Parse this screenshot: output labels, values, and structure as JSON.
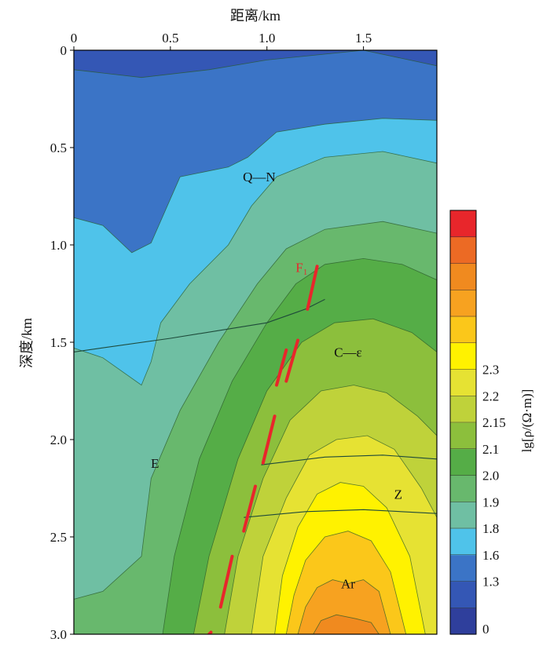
{
  "chart_data": {
    "type": "heatmap",
    "title": "",
    "xlabel": "距离/km",
    "ylabel": "深度/km",
    "xlim": [
      0,
      1.88
    ],
    "ylim": [
      0,
      3.0
    ],
    "x_ticks": [
      "0",
      "0.5",
      "1.0",
      "1.5"
    ],
    "x_tick_values": [
      0,
      0.5,
      1.0,
      1.5
    ],
    "y_ticks": [
      "0",
      "0.5",
      "1.0",
      "1.5",
      "2.0",
      "2.5",
      "3.0"
    ],
    "y_tick_values": [
      0,
      0.5,
      1.0,
      1.5,
      2.0,
      2.5,
      3.0
    ],
    "colorbar": {
      "label": "lg[ρ/(Ω·m)]",
      "labels": [
        "0",
        "1.3",
        "1.6",
        "1.8",
        "1.9",
        "2.0",
        "2.1",
        "2.15",
        "2.2",
        "2.3"
      ],
      "colors": [
        "#2f3f9c",
        "#3457b5",
        "#3b74c6",
        "#4fc3ea",
        "#6fbfa3",
        "#68b86d",
        "#55ad47",
        "#8cbf3c",
        "#bfd23a",
        "#e6e233",
        "#fff200",
        "#fbc71a",
        "#f7a220",
        "#f08a1f",
        "#ec6a24",
        "#e8262b"
      ]
    },
    "layers": [
      {
        "label": "Q—N",
        "x": 0.96,
        "depth": 0.65
      },
      {
        "label": "C—ε",
        "x": 1.42,
        "depth": 1.55
      },
      {
        "label": "E",
        "x": 0.42,
        "depth": 2.12
      },
      {
        "label": "Z",
        "x": 1.68,
        "depth": 2.28
      },
      {
        "label": "Ar",
        "x": 1.42,
        "depth": 2.74
      }
    ],
    "fault": {
      "label": "F₁",
      "label_x": 1.18,
      "label_depth": 1.14,
      "segments": [
        [
          [
            1.26,
            1.11
          ],
          [
            1.21,
            1.33
          ]
        ],
        [
          [
            1.1,
            1.54
          ],
          [
            1.05,
            1.72
          ]
        ],
        [
          [
            1.16,
            1.49
          ],
          [
            1.1,
            1.7
          ]
        ],
        [
          [
            1.04,
            1.88
          ],
          [
            0.98,
            2.12
          ]
        ],
        [
          [
            0.94,
            2.24
          ],
          [
            0.88,
            2.47
          ]
        ],
        [
          [
            0.82,
            2.6
          ],
          [
            0.76,
            2.86
          ]
        ],
        [
          [
            0.71,
            2.99
          ],
          [
            0.7,
            3.0
          ]
        ]
      ]
    },
    "boundaries": [
      [
        [
          0,
          1.55
        ],
        [
          0.5,
          1.48
        ],
        [
          1.0,
          1.4
        ],
        [
          1.2,
          1.33
        ],
        [
          1.3,
          1.28
        ]
      ],
      [
        [
          0.97,
          2.13
        ],
        [
          1.3,
          2.09
        ],
        [
          1.6,
          2.08
        ],
        [
          1.88,
          2.1
        ]
      ],
      [
        [
          0.88,
          2.4
        ],
        [
          1.2,
          2.37
        ],
        [
          1.5,
          2.36
        ],
        [
          1.88,
          2.38
        ]
      ]
    ],
    "regions": [
      {
        "color": "#3457b5",
        "pts": [
          [
            0,
            0
          ],
          [
            1.88,
            0
          ],
          [
            1.88,
            3.0
          ],
          [
            0,
            3.0
          ]
        ]
      },
      {
        "color": "#3b74c6",
        "pts": [
          [
            0,
            0.1
          ],
          [
            0.35,
            0.14
          ],
          [
            0.7,
            0.1
          ],
          [
            1.0,
            0.05
          ],
          [
            1.5,
            0.0
          ],
          [
            1.88,
            0.08
          ],
          [
            1.88,
            3.0
          ],
          [
            0,
            3.0
          ]
        ]
      },
      {
        "color": "#4fc3ea",
        "pts": [
          [
            0,
            0.86
          ],
          [
            0.15,
            0.9
          ],
          [
            0.3,
            1.04
          ],
          [
            0.4,
            0.99
          ],
          [
            0.55,
            0.65
          ],
          [
            0.8,
            0.6
          ],
          [
            0.9,
            0.55
          ],
          [
            1.05,
            0.42
          ],
          [
            1.3,
            0.38
          ],
          [
            1.6,
            0.35
          ],
          [
            1.88,
            0.36
          ],
          [
            1.88,
            3.0
          ],
          [
            0,
            3.0
          ]
        ]
      },
      {
        "color": "#6fbfa3",
        "pts": [
          [
            0,
            1.53
          ],
          [
            0.15,
            1.58
          ],
          [
            0.35,
            1.72
          ],
          [
            0.4,
            1.6
          ],
          [
            0.45,
            1.4
          ],
          [
            0.6,
            1.2
          ],
          [
            0.8,
            1.0
          ],
          [
            0.92,
            0.8
          ],
          [
            1.05,
            0.65
          ],
          [
            1.3,
            0.55
          ],
          [
            1.6,
            0.52
          ],
          [
            1.88,
            0.58
          ],
          [
            1.88,
            3.0
          ],
          [
            0,
            3.0
          ]
        ]
      },
      {
        "color": "#68b86d",
        "pts": [
          [
            0,
            2.82
          ],
          [
            0.15,
            2.78
          ],
          [
            0.35,
            2.6
          ],
          [
            0.4,
            2.2
          ],
          [
            0.55,
            1.85
          ],
          [
            0.75,
            1.5
          ],
          [
            0.95,
            1.2
          ],
          [
            1.1,
            1.02
          ],
          [
            1.3,
            0.92
          ],
          [
            1.6,
            0.88
          ],
          [
            1.88,
            0.94
          ],
          [
            1.88,
            3.0
          ],
          [
            0,
            3.0
          ]
        ]
      },
      {
        "color": "#55ad47",
        "pts": [
          [
            0.46,
            3.0
          ],
          [
            0.52,
            2.6
          ],
          [
            0.65,
            2.1
          ],
          [
            0.82,
            1.7
          ],
          [
            1.0,
            1.4
          ],
          [
            1.15,
            1.2
          ],
          [
            1.3,
            1.1
          ],
          [
            1.5,
            1.07
          ],
          [
            1.7,
            1.1
          ],
          [
            1.88,
            1.18
          ],
          [
            1.88,
            3.0
          ]
        ]
      },
      {
        "color": "#8cbf3c",
        "pts": [
          [
            0.62,
            3.0
          ],
          [
            0.7,
            2.6
          ],
          [
            0.85,
            2.1
          ],
          [
            1.0,
            1.75
          ],
          [
            1.18,
            1.5
          ],
          [
            1.35,
            1.4
          ],
          [
            1.55,
            1.38
          ],
          [
            1.75,
            1.45
          ],
          [
            1.88,
            1.55
          ],
          [
            1.88,
            3.0
          ]
        ]
      },
      {
        "color": "#bfd23a",
        "pts": [
          [
            0.78,
            3.0
          ],
          [
            0.85,
            2.6
          ],
          [
            0.98,
            2.2
          ],
          [
            1.12,
            1.9
          ],
          [
            1.28,
            1.75
          ],
          [
            1.45,
            1.72
          ],
          [
            1.62,
            1.76
          ],
          [
            1.78,
            1.88
          ],
          [
            1.88,
            1.98
          ],
          [
            1.88,
            3.0
          ]
        ]
      },
      {
        "color": "#e6e233",
        "pts": [
          [
            0.92,
            3.0
          ],
          [
            0.98,
            2.6
          ],
          [
            1.1,
            2.3
          ],
          [
            1.22,
            2.08
          ],
          [
            1.36,
            2.0
          ],
          [
            1.52,
            1.98
          ],
          [
            1.66,
            2.05
          ],
          [
            1.8,
            2.25
          ],
          [
            1.88,
            2.4
          ],
          [
            1.88,
            3.0
          ]
        ]
      },
      {
        "color": "#fff200",
        "pts": [
          [
            1.04,
            3.0
          ],
          [
            1.08,
            2.7
          ],
          [
            1.16,
            2.45
          ],
          [
            1.26,
            2.28
          ],
          [
            1.38,
            2.22
          ],
          [
            1.5,
            2.24
          ],
          [
            1.62,
            2.35
          ],
          [
            1.74,
            2.6
          ],
          [
            1.82,
            3.0
          ]
        ]
      },
      {
        "color": "#fbc71a",
        "pts": [
          [
            1.1,
            3.0
          ],
          [
            1.14,
            2.8
          ],
          [
            1.2,
            2.62
          ],
          [
            1.3,
            2.5
          ],
          [
            1.42,
            2.47
          ],
          [
            1.54,
            2.52
          ],
          [
            1.64,
            2.68
          ],
          [
            1.72,
            3.0
          ]
        ]
      },
      {
        "color": "#f7a220",
        "pts": [
          [
            1.16,
            3.0
          ],
          [
            1.2,
            2.86
          ],
          [
            1.26,
            2.76
          ],
          [
            1.34,
            2.72
          ],
          [
            1.42,
            2.74
          ],
          [
            1.5,
            2.72
          ],
          [
            1.58,
            2.78
          ],
          [
            1.64,
            3.0
          ]
        ]
      },
      {
        "color": "#f08a1f",
        "pts": [
          [
            1.24,
            3.0
          ],
          [
            1.28,
            2.93
          ],
          [
            1.36,
            2.9
          ],
          [
            1.46,
            2.92
          ],
          [
            1.54,
            2.94
          ],
          [
            1.58,
            3.0
          ]
        ]
      }
    ]
  }
}
